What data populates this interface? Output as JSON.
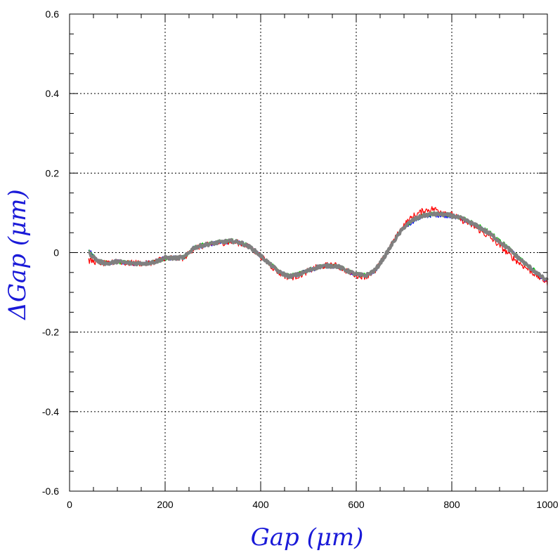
{
  "chart_data": {
    "type": "line",
    "xlabel": "Gap  (μm)",
    "ylabel": "ΔGap  (μm)",
    "xlim": [
      0,
      1000
    ],
    "ylim": [
      -0.6,
      0.6
    ],
    "x_ticks": [
      0,
      200,
      400,
      600,
      800,
      1000
    ],
    "y_ticks": [
      -0.6,
      -0.4,
      -0.2,
      0,
      0.2,
      0.4,
      0.6
    ],
    "x_tick_labels": [
      "0",
      "200",
      "400",
      "600",
      "800",
      "1000"
    ],
    "y_tick_labels": [
      "-0.6",
      "-0.4",
      "-0.2",
      "0",
      "0.2",
      "0.4",
      "0.6"
    ],
    "grid": true,
    "series": [
      {
        "color": "#0000ff",
        "x": [
          40,
          60,
          80,
          100,
          120,
          140,
          160,
          180,
          200,
          220,
          240,
          260,
          280,
          300,
          320,
          340,
          360,
          380,
          400,
          420,
          440,
          460,
          480,
          500,
          520,
          540,
          560,
          580,
          600,
          620,
          640,
          660,
          680,
          700,
          720,
          740,
          760,
          780,
          800,
          820,
          840,
          860,
          880,
          900,
          920,
          940,
          960,
          980,
          1000
        ],
        "y": [
          0.005,
          -0.022,
          -0.028,
          -0.022,
          -0.026,
          -0.027,
          -0.026,
          -0.022,
          -0.013,
          -0.014,
          -0.012,
          0.012,
          0.018,
          0.022,
          0.026,
          0.028,
          0.024,
          0.012,
          -0.008,
          -0.03,
          -0.05,
          -0.06,
          -0.055,
          -0.045,
          -0.037,
          -0.034,
          -0.035,
          -0.045,
          -0.055,
          -0.058,
          -0.045,
          -0.01,
          0.03,
          0.062,
          0.08,
          0.09,
          0.095,
          0.094,
          0.092,
          0.085,
          0.075,
          0.062,
          0.047,
          0.028,
          0.008,
          -0.015,
          -0.035,
          -0.055,
          -0.072
        ]
      },
      {
        "color": "#00cc00",
        "x": [
          40,
          60,
          80,
          100,
          120,
          140,
          160,
          180,
          200,
          220,
          240,
          260,
          280,
          300,
          320,
          340,
          360,
          380,
          400,
          420,
          440,
          460,
          480,
          500,
          520,
          540,
          560,
          580,
          600,
          620,
          640,
          660,
          680,
          700,
          720,
          740,
          760,
          780,
          800,
          820,
          840,
          860,
          880,
          900,
          920,
          940,
          960,
          980,
          1000
        ],
        "y": [
          0.003,
          -0.021,
          -0.027,
          -0.023,
          -0.025,
          -0.026,
          -0.027,
          -0.023,
          -0.014,
          -0.013,
          -0.011,
          0.013,
          0.02,
          0.024,
          0.028,
          0.03,
          0.025,
          0.013,
          -0.007,
          -0.029,
          -0.049,
          -0.059,
          -0.054,
          -0.044,
          -0.036,
          -0.033,
          -0.034,
          -0.044,
          -0.054,
          -0.057,
          -0.043,
          -0.008,
          0.032,
          0.064,
          0.082,
          0.092,
          0.097,
          0.097,
          0.094,
          0.088,
          0.077,
          0.065,
          0.05,
          0.031,
          0.011,
          -0.012,
          -0.032,
          -0.052,
          -0.07
        ]
      },
      {
        "color": "#ff0000",
        "x": [
          40,
          60,
          80,
          100,
          120,
          140,
          160,
          180,
          200,
          220,
          240,
          260,
          280,
          300,
          320,
          340,
          360,
          380,
          400,
          420,
          440,
          460,
          480,
          500,
          520,
          540,
          560,
          580,
          600,
          620,
          640,
          660,
          680,
          700,
          720,
          740,
          760,
          780,
          800,
          820,
          840,
          860,
          880,
          900,
          920,
          940,
          960,
          980,
          1000
        ],
        "y": [
          -0.02,
          -0.024,
          -0.029,
          -0.021,
          -0.027,
          -0.026,
          -0.028,
          -0.022,
          -0.012,
          -0.015,
          -0.013,
          0.011,
          0.017,
          0.021,
          0.025,
          0.027,
          0.023,
          0.011,
          -0.009,
          -0.032,
          -0.052,
          -0.063,
          -0.058,
          -0.046,
          -0.036,
          -0.032,
          -0.033,
          -0.046,
          -0.057,
          -0.06,
          -0.046,
          -0.009,
          0.033,
          0.07,
          0.092,
          0.105,
          0.11,
          0.104,
          0.095,
          0.083,
          0.07,
          0.055,
          0.038,
          0.018,
          -0.005,
          -0.025,
          -0.042,
          -0.06,
          -0.075
        ]
      },
      {
        "color": "#808080",
        "x": [
          40,
          60,
          80,
          100,
          120,
          140,
          160,
          180,
          200,
          220,
          240,
          260,
          280,
          300,
          320,
          340,
          360,
          380,
          400,
          420,
          440,
          460,
          480,
          500,
          520,
          540,
          560,
          580,
          600,
          620,
          640,
          660,
          680,
          700,
          720,
          740,
          760,
          780,
          800,
          820,
          840,
          860,
          880,
          900,
          920,
          940,
          960,
          980,
          1000
        ],
        "y": [
          0.0,
          -0.022,
          -0.028,
          -0.022,
          -0.026,
          -0.027,
          -0.027,
          -0.023,
          -0.013,
          -0.014,
          -0.012,
          0.012,
          0.019,
          0.023,
          0.027,
          0.029,
          0.024,
          0.012,
          -0.008,
          -0.03,
          -0.05,
          -0.06,
          -0.055,
          -0.045,
          -0.036,
          -0.033,
          -0.034,
          -0.045,
          -0.055,
          -0.058,
          -0.044,
          -0.009,
          0.031,
          0.064,
          0.083,
          0.093,
          0.097,
          0.096,
          0.093,
          0.086,
          0.075,
          0.062,
          0.047,
          0.028,
          0.008,
          -0.014,
          -0.034,
          -0.054,
          -0.071
        ]
      }
    ]
  }
}
